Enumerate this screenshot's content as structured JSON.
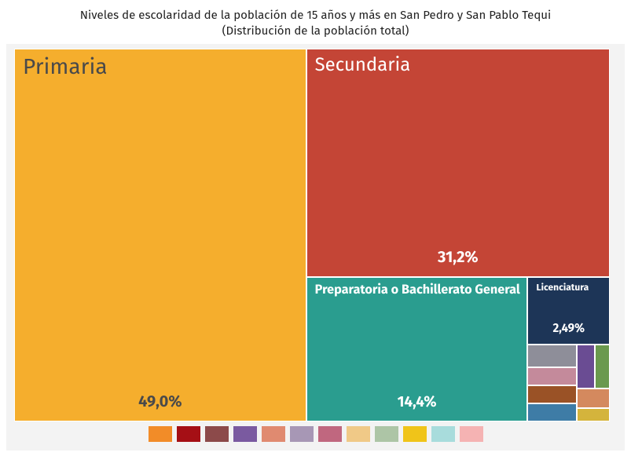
{
  "chart_data": {
    "type": "treemap",
    "title": "Niveles de escolaridad de la población de 15 años y más en San Pedro y San Pablo Tequi",
    "subtitle": "(Distribución de la población total)",
    "categories": [
      "Primaria",
      "Secundaria",
      "Preparatoria o Bachillerato General",
      "Licenciatura",
      null,
      null,
      null,
      null,
      null,
      null,
      null,
      null
    ],
    "values": [
      49.0,
      31.2,
      14.4,
      2.49,
      0.5,
      0.41,
      0.4,
      0.39,
      0.37,
      0.29,
      0.29,
      0.2
    ],
    "value_labels": [
      "49,0%",
      "31,2%",
      "14,4%",
      "2,49%",
      null,
      null,
      null,
      null,
      null,
      null,
      null,
      null
    ],
    "colors": [
      "#f5ae2d",
      "#c44536",
      "#2a9d8f",
      "#1d3557",
      "#8e8e99",
      "#c48a9b",
      "#9a5226",
      "#3e7ca6",
      "#6a4c93",
      "#6a994e",
      "#d4895e",
      "#d4b43c"
    ],
    "legend": {
      "colors": [
        "#f28c28",
        "#a50f15",
        "#8c4a4a",
        "#7a5aa0",
        "#e08a70",
        "#a797b5",
        "#c0677f",
        "#f0c987",
        "#adc5a6",
        "#f0c419",
        "#a8dcdc",
        "#f5b3b3"
      ]
    }
  }
}
